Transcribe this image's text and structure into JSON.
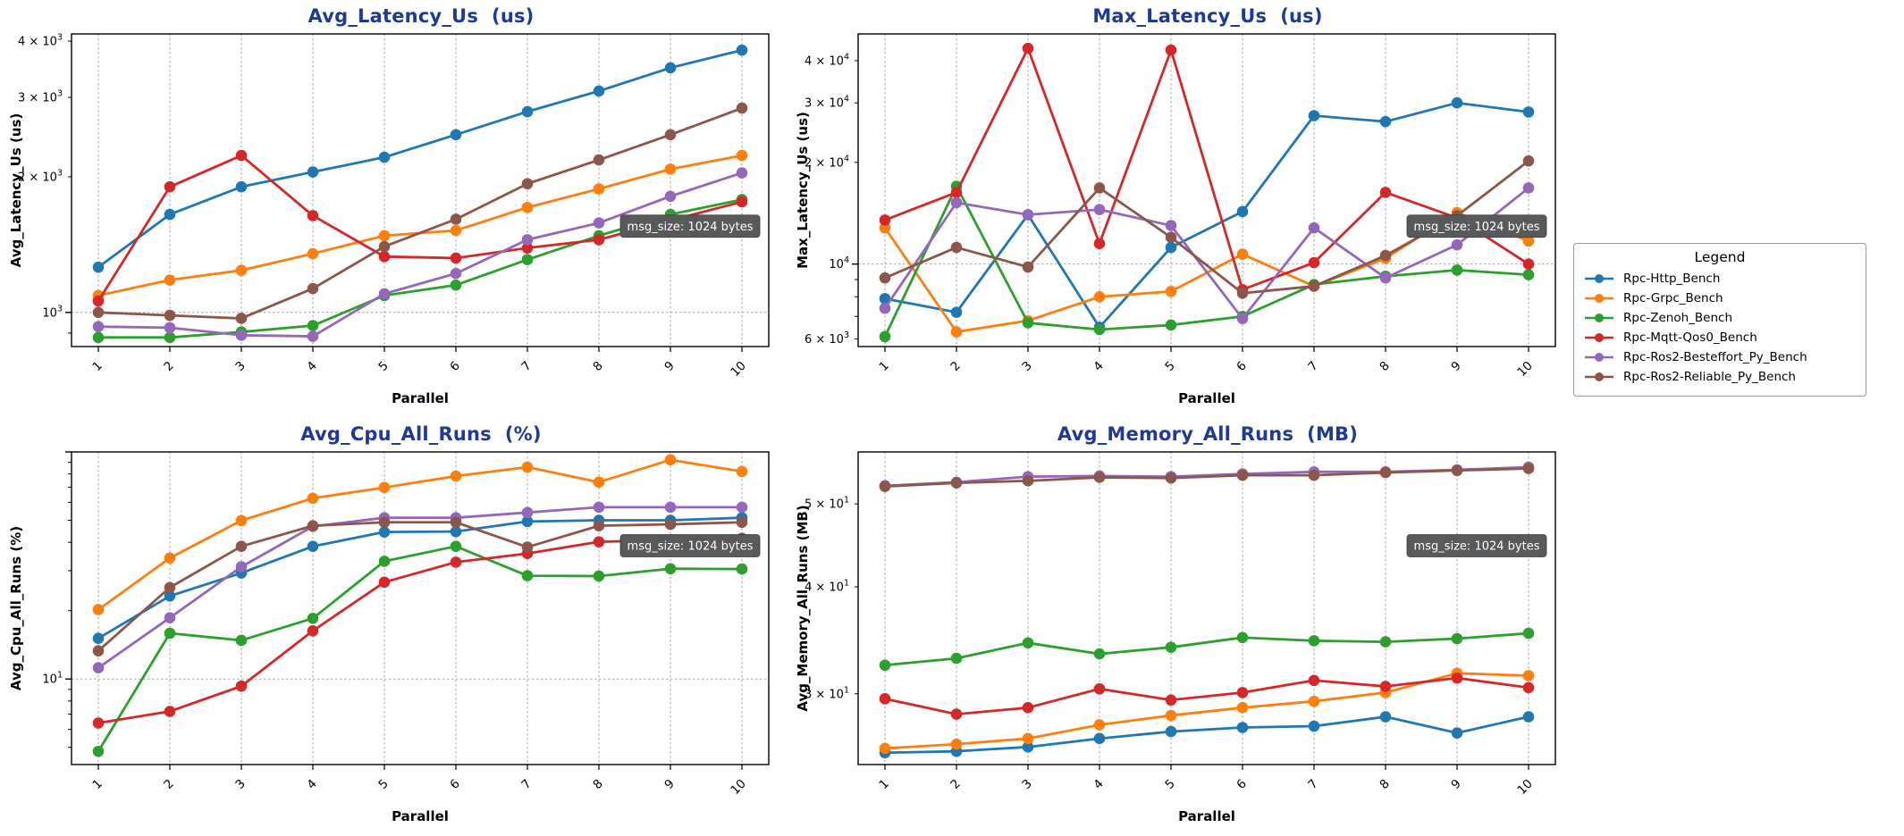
{
  "legend": {
    "title": "Legend",
    "position": "outside-right"
  },
  "annotation": {
    "label": "msg_size: 1024 bytes",
    "bg": "#58595b",
    "fg": "#ffffff"
  },
  "x_values": [
    1,
    2,
    3,
    4,
    5,
    6,
    7,
    8,
    9,
    10
  ],
  "series": [
    {
      "name": "Rpc-Http_Bench",
      "color": "#1f77b4"
    },
    {
      "name": "Rpc-Grpc_Bench",
      "color": "#ff7f0e"
    },
    {
      "name": "Rpc-Zenoh_Bench",
      "color": "#2ca02c"
    },
    {
      "name": "Rpc-Mqtt-Qos0_Bench",
      "color": "#d62728"
    },
    {
      "name": "Rpc-Ros2-Besteffort_Py_Bench",
      "color": "#9467bd"
    },
    {
      "name": "Rpc-Ros2-Reliable_Py_Bench",
      "color": "#8c564b"
    }
  ],
  "chart_data": [
    {
      "id": "avg-latency",
      "type": "line",
      "title": "Avg_Latency_Us  (us)",
      "ylabel": "Avg_Latency_Us (us)",
      "xlabel": "Parallel",
      "y_scale": "log",
      "grid": "major-dashed",
      "ylim": [
        840,
        4150
      ],
      "yticks": [
        1000,
        2000,
        3000,
        4000
      ],
      "annotation_y_frac": 0.615,
      "series_values": [
        [
          1260,
          1650,
          1900,
          2050,
          2210,
          2480,
          2790,
          3100,
          3490,
          3820
        ],
        [
          1090,
          1180,
          1240,
          1350,
          1480,
          1520,
          1710,
          1880,
          2080,
          2230
        ],
        [
          880,
          880,
          905,
          935,
          1090,
          1150,
          1310,
          1480,
          1650,
          1780
        ],
        [
          1060,
          1900,
          2230,
          1640,
          1330,
          1320,
          1390,
          1450,
          1600,
          1760
        ],
        [
          930,
          925,
          890,
          885,
          1100,
          1220,
          1450,
          1580,
          1810,
          2040
        ],
        [
          1000,
          985,
          970,
          1130,
          1400,
          1610,
          1930,
          2180,
          2480,
          2840
        ]
      ]
    },
    {
      "id": "max-latency",
      "type": "line",
      "title": "Max_Latency_Us  (us)",
      "ylabel": "Max_Latency_Us (us)",
      "xlabel": "Parallel",
      "y_scale": "log",
      "grid": "major-dashed",
      "ylim": [
        5700,
        48000
      ],
      "yticks": [
        6000,
        10000,
        20000,
        30000,
        40000
      ],
      "annotation_y_frac": 0.615,
      "series_values": [
        [
          7900,
          7200,
          14000,
          6500,
          11200,
          14300,
          27500,
          26400,
          30000,
          28200
        ],
        [
          12800,
          6300,
          6800,
          8000,
          8300,
          10700,
          8600,
          10400,
          14200,
          11700
        ],
        [
          6100,
          17000,
          6700,
          6400,
          6600,
          7000,
          8700,
          9200,
          9600,
          9300
        ],
        [
          13500,
          16300,
          43500,
          11500,
          43000,
          8400,
          10100,
          16300,
          13700,
          10000
        ],
        [
          7400,
          15200,
          14000,
          14500,
          13000,
          6900,
          12800,
          9100,
          11400,
          16800
        ],
        [
          9100,
          11200,
          9800,
          16800,
          12000,
          8200,
          8600,
          10600,
          13900,
          20200
        ]
      ]
    },
    {
      "id": "avg-cpu",
      "type": "line",
      "title": "Avg_Cpu_All_Runs  (%)",
      "ylabel": "Avg_Cpu_All_Runs (%)",
      "xlabel": "Parallel",
      "y_scale": "log",
      "grid": "major-dashed",
      "ylim": [
        4.2,
        100
      ],
      "yticks": [
        10
      ],
      "annotation_y_frac": 0.3,
      "series_values": [
        [
          15.1,
          23.2,
          29.3,
          38.4,
          44.4,
          44.6,
          49.4,
          50.0,
          50.0,
          51.3
        ],
        [
          20.2,
          34.1,
          49.9,
          62.5,
          69.7,
          78.3,
          85.7,
          73.6,
          92.3,
          82.0
        ],
        [
          4.8,
          15.9,
          14.8,
          18.5,
          33.0,
          38.4,
          28.5,
          28.4,
          30.6,
          30.5
        ],
        [
          6.4,
          7.2,
          9.3,
          16.3,
          26.7,
          32.7,
          35.7,
          40.2,
          40.9,
          41.6
        ],
        [
          11.2,
          18.6,
          31.2,
          47.0,
          51.3,
          51.3,
          54.1,
          57.1,
          57.1,
          57.1
        ],
        [
          13.3,
          25.3,
          38.4,
          47.3,
          49.0,
          49.0,
          38.1,
          47.3,
          48.0,
          49.0
        ]
      ]
    },
    {
      "id": "avg-memory",
      "type": "line",
      "title": "Avg_Memory_All_Runs  (MB)",
      "ylabel": "Avg_Memory_All_Runs (MB)",
      "xlabel": "Parallel",
      "y_scale": "log",
      "grid": "major-dashed",
      "ylim": [
        24.8,
        57.5
      ],
      "yticks": [
        30,
        40,
        50
      ],
      "annotation_y_frac": 0.3,
      "series_values": [
        [
          25.6,
          25.7,
          26.0,
          26.6,
          27.1,
          27.4,
          27.5,
          28.2,
          27.0,
          28.2
        ],
        [
          25.9,
          26.2,
          26.6,
          27.6,
          28.3,
          28.9,
          29.4,
          30.1,
          31.7,
          31.5
        ],
        [
          32.4,
          33.0,
          34.4,
          33.4,
          34.0,
          34.9,
          34.6,
          34.5,
          34.8,
          35.3
        ],
        [
          29.6,
          28.4,
          28.9,
          30.4,
          29.5,
          30.1,
          31.1,
          30.6,
          31.3,
          30.5
        ],
        [
          52.5,
          53.0,
          53.8,
          53.9,
          53.8,
          54.2,
          54.5,
          54.5,
          54.8,
          55.2
        ],
        [
          52.4,
          52.9,
          53.2,
          53.7,
          53.6,
          54.0,
          54.0,
          54.4,
          54.7,
          55.0
        ]
      ]
    }
  ]
}
